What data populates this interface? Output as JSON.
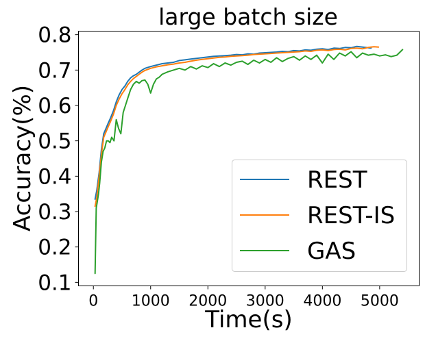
{
  "chart_data": {
    "type": "line",
    "title": "large batch size",
    "xlabel": "Time(s)",
    "ylabel": "Accuracy(%)",
    "xlim": [
      -260,
      5690
    ],
    "ylim": [
      0.09,
      0.81
    ],
    "xticks": [
      0,
      1000,
      2000,
      3000,
      4000,
      5000
    ],
    "xtick_labels": [
      "0",
      "1000",
      "2000",
      "3000",
      "4000",
      "5000"
    ],
    "yticks": [
      0.1,
      0.2,
      0.3,
      0.4,
      0.5,
      0.6,
      0.7,
      0.8
    ],
    "ytick_labels": [
      "0.1",
      "0.2",
      "0.3",
      "0.4",
      "0.5",
      "0.6",
      "0.7",
      "0.8"
    ],
    "grid": false,
    "legend": "lower-right",
    "series": [
      {
        "name": "REST",
        "color": "#1f77b4",
        "x": [
          30,
          60,
          100,
          140,
          180,
          220,
          260,
          300,
          350,
          400,
          450,
          500,
          550,
          600,
          650,
          700,
          750,
          800,
          850,
          900,
          1000,
          1100,
          1200,
          1300,
          1400,
          1500,
          1600,
          1700,
          1800,
          1900,
          2000,
          2100,
          2200,
          2300,
          2400,
          2500,
          2600,
          2700,
          2800,
          2900,
          3000,
          3100,
          3200,
          3300,
          3400,
          3500,
          3600,
          3700,
          3800,
          3900,
          4000,
          4100,
          4200,
          4300,
          4400,
          4500,
          4600,
          4700,
          4800,
          4850
        ],
        "y": [
          0.335,
          0.36,
          0.41,
          0.475,
          0.52,
          0.535,
          0.55,
          0.565,
          0.585,
          0.61,
          0.63,
          0.645,
          0.655,
          0.668,
          0.678,
          0.684,
          0.688,
          0.694,
          0.7,
          0.705,
          0.71,
          0.714,
          0.718,
          0.72,
          0.722,
          0.727,
          0.729,
          0.731,
          0.733,
          0.735,
          0.737,
          0.739,
          0.74,
          0.741,
          0.742,
          0.744,
          0.743,
          0.746,
          0.745,
          0.748,
          0.749,
          0.75,
          0.751,
          0.753,
          0.752,
          0.755,
          0.754,
          0.757,
          0.756,
          0.759,
          0.76,
          0.758,
          0.762,
          0.761,
          0.764,
          0.763,
          0.767,
          0.765,
          0.763,
          0.762
        ]
      },
      {
        "name": "REST-IS",
        "color": "#ff7f0e",
        "x": [
          30,
          60,
          100,
          140,
          180,
          220,
          260,
          300,
          350,
          400,
          450,
          500,
          550,
          600,
          650,
          700,
          750,
          800,
          850,
          900,
          1000,
          1100,
          1200,
          1300,
          1400,
          1500,
          1600,
          1700,
          1800,
          1900,
          2000,
          2100,
          2200,
          2300,
          2400,
          2500,
          2600,
          2700,
          2800,
          2900,
          3000,
          3100,
          3200,
          3300,
          3400,
          3500,
          3600,
          3700,
          3800,
          3900,
          4000,
          4100,
          4200,
          4300,
          4400,
          4500,
          4600,
          4700,
          4800,
          4900,
          4980
        ],
        "y": [
          0.315,
          0.34,
          0.4,
          0.46,
          0.51,
          0.525,
          0.54,
          0.555,
          0.575,
          0.6,
          0.618,
          0.633,
          0.645,
          0.658,
          0.668,
          0.676,
          0.682,
          0.688,
          0.694,
          0.699,
          0.705,
          0.709,
          0.712,
          0.715,
          0.717,
          0.72,
          0.722,
          0.725,
          0.728,
          0.73,
          0.732,
          0.734,
          0.736,
          0.737,
          0.739,
          0.74,
          0.741,
          0.742,
          0.744,
          0.745,
          0.746,
          0.747,
          0.748,
          0.749,
          0.75,
          0.751,
          0.752,
          0.754,
          0.753,
          0.756,
          0.757,
          0.755,
          0.758,
          0.759,
          0.757,
          0.761,
          0.762,
          0.76,
          0.764,
          0.766,
          0.765
        ]
      },
      {
        "name": "GAS",
        "color": "#2ca02c",
        "x": [
          30,
          50,
          70,
          90,
          110,
          140,
          170,
          200,
          230,
          260,
          290,
          320,
          360,
          400,
          440,
          480,
          520,
          560,
          600,
          650,
          700,
          750,
          800,
          850,
          900,
          950,
          1000,
          1050,
          1100,
          1150,
          1200,
          1300,
          1400,
          1500,
          1600,
          1700,
          1800,
          1900,
          2000,
          2100,
          2200,
          2300,
          2400,
          2500,
          2600,
          2700,
          2800,
          2900,
          3000,
          3100,
          3200,
          3300,
          3400,
          3500,
          3600,
          3700,
          3800,
          3900,
          4000,
          4100,
          4200,
          4300,
          4400,
          4500,
          4600,
          4700,
          4800,
          4900,
          5000,
          5100,
          5200,
          5300,
          5400
        ],
        "y": [
          0.125,
          0.31,
          0.33,
          0.35,
          0.38,
          0.44,
          0.47,
          0.48,
          0.5,
          0.5,
          0.495,
          0.51,
          0.5,
          0.56,
          0.535,
          0.52,
          0.58,
          0.6,
          0.62,
          0.645,
          0.66,
          0.668,
          0.663,
          0.67,
          0.672,
          0.66,
          0.635,
          0.66,
          0.675,
          0.68,
          0.688,
          0.695,
          0.7,
          0.705,
          0.7,
          0.71,
          0.703,
          0.712,
          0.707,
          0.718,
          0.71,
          0.72,
          0.714,
          0.722,
          0.725,
          0.716,
          0.728,
          0.72,
          0.73,
          0.722,
          0.735,
          0.724,
          0.733,
          0.738,
          0.728,
          0.74,
          0.73,
          0.742,
          0.72,
          0.745,
          0.73,
          0.748,
          0.74,
          0.752,
          0.735,
          0.748,
          0.742,
          0.745,
          0.74,
          0.743,
          0.738,
          0.742,
          0.758
        ]
      }
    ]
  }
}
